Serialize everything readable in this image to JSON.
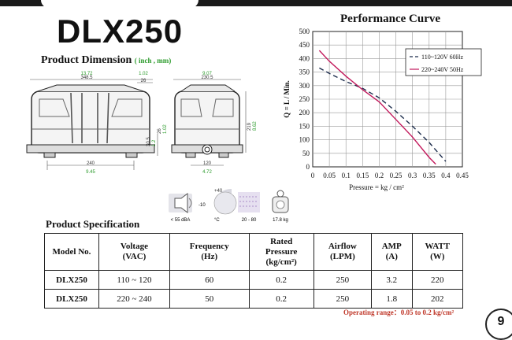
{
  "header": {
    "model": "DLX250",
    "dimension_title": "Product Dimension",
    "dimension_unit": "( inch , mm)",
    "performance_title": "Performance Curve"
  },
  "dimensions": {
    "front_top_inch": "13.72",
    "front_top_mm": "348.5",
    "front_top_right_inch": "1.02",
    "front_top_right_mm": "26",
    "front_bottom_mm": "240",
    "front_bottom_inch": "9.45",
    "front_side_mm": "30.5",
    "front_side_mm2": "26",
    "front_side_inch": "1.2",
    "front_side_inch2": "1.02",
    "side_top_inch": "9.07",
    "side_top_mm": "230.5",
    "side_height_mm": "219",
    "side_height_inch": "8.62",
    "side_bottom_mm": "120",
    "side_bottom_inch": "4.72"
  },
  "icons": {
    "noise": "< 55 dBA",
    "temp_high": "+40",
    "temp_low": "-10",
    "temp_unit": "°C",
    "humidity": "20 - 80",
    "weight": "17.8 kg"
  },
  "chart_data": {
    "type": "line",
    "title": "Performance Curve",
    "xlabel": "Pressure = kg / cm²",
    "ylabel": "Q = L / Min.",
    "xlim": [
      0,
      0.45
    ],
    "ylim": [
      0,
      500
    ],
    "xticks": [
      "0",
      "0.05",
      "0.1",
      "0.15",
      "0.2",
      "0.25",
      "0.3",
      "0.35",
      "0.4",
      "0.45"
    ],
    "yticks": [
      "0",
      "50",
      "100",
      "150",
      "200",
      "250",
      "300",
      "350",
      "400",
      "450",
      "500"
    ],
    "grid": true,
    "legend_position": "top-right",
    "series": [
      {
        "name": "110~120V 60Hz",
        "color": "#1a2a4a",
        "style": "dashed",
        "x": [
          0.02,
          0.05,
          0.1,
          0.15,
          0.2,
          0.25,
          0.3,
          0.35,
          0.4
        ],
        "y": [
          365,
          345,
          315,
          290,
          255,
          205,
          150,
          90,
          20
        ]
      },
      {
        "name": "220~240V 50Hz",
        "color": "#c2185b",
        "style": "solid",
        "x": [
          0.02,
          0.05,
          0.1,
          0.15,
          0.2,
          0.25,
          0.3,
          0.35,
          0.37
        ],
        "y": [
          430,
          390,
          335,
          285,
          240,
          175,
          110,
          35,
          10
        ]
      }
    ]
  },
  "spec": {
    "title": "Product Specification",
    "headers": [
      "Model No.",
      "Voltage (VAC)",
      "Frequency (Hz)",
      "Rated Pressure (kg/cm²)",
      "Airflow (LPM)",
      "AMP (A)",
      "WATT (W)"
    ],
    "header_lines": [
      [
        "Model No."
      ],
      [
        "Voltage",
        "(VAC)"
      ],
      [
        "Frequency",
        "(Hz)"
      ],
      [
        "Rated",
        "Pressure",
        "(kg/cm²)"
      ],
      [
        "Airflow",
        "(LPM)"
      ],
      [
        "AMP",
        "(A)"
      ],
      [
        "WATT",
        "(W)"
      ]
    ],
    "rows": [
      [
        "DLX250",
        "110 ~ 120",
        "60",
        "0.2",
        "250",
        "3.2",
        "220"
      ],
      [
        "DLX250",
        "220 ~ 240",
        "50",
        "0.2",
        "250",
        "1.8",
        "202"
      ]
    ]
  },
  "footer": {
    "operating_range": "Operating range：0.05 to 0.2 kg/cm²",
    "page": "9"
  }
}
